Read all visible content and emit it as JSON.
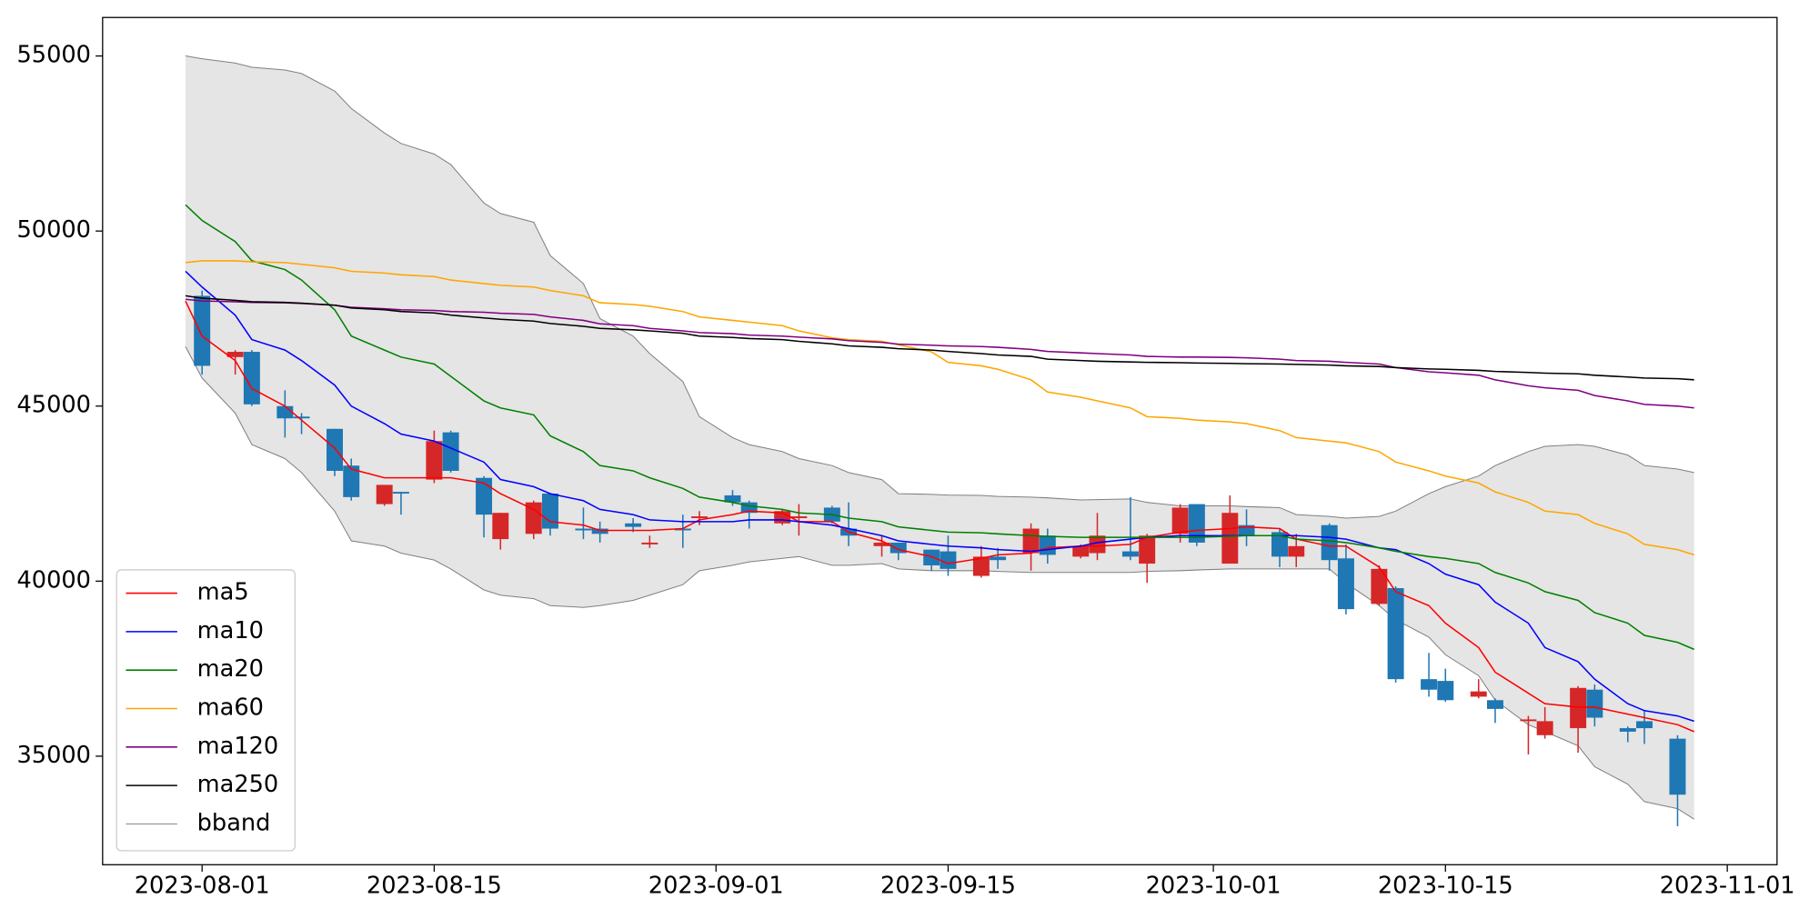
{
  "chart_data": {
    "type": "candlestick",
    "x": [
      "2023-07-31",
      "2023-08-01",
      "2023-08-03",
      "2023-08-04",
      "2023-08-06",
      "2023-08-07",
      "2023-08-09",
      "2023-08-10",
      "2023-08-12",
      "2023-08-13",
      "2023-08-15",
      "2023-08-16",
      "2023-08-18",
      "2023-08-19",
      "2023-08-21",
      "2023-08-22",
      "2023-08-24",
      "2023-08-25",
      "2023-08-27",
      "2023-08-28",
      "2023-08-30",
      "2023-08-31",
      "2023-09-02",
      "2023-09-03",
      "2023-09-05",
      "2023-09-06",
      "2023-09-08",
      "2023-09-09",
      "2023-09-11",
      "2023-09-12",
      "2023-09-14",
      "2023-09-15",
      "2023-09-17",
      "2023-09-18",
      "2023-09-20",
      "2023-09-21",
      "2023-09-23",
      "2023-09-24",
      "2023-09-26",
      "2023-09-27",
      "2023-09-29",
      "2023-09-30",
      "2023-10-02",
      "2023-10-03",
      "2023-10-05",
      "2023-10-06",
      "2023-10-08",
      "2023-10-09",
      "2023-10-11",
      "2023-10-12",
      "2023-10-14",
      "2023-10-15",
      "2023-10-17",
      "2023-10-18",
      "2023-10-20",
      "2023-10-21",
      "2023-10-23",
      "2023-10-24",
      "2023-10-26",
      "2023-10-27",
      "2023-10-29",
      "2023-10-30"
    ],
    "open": [
      null,
      48150,
      46400,
      46550,
      45000,
      44700,
      44350,
      43300,
      42200,
      42550,
      42900,
      44250,
      42950,
      41200,
      41350,
      42500,
      41500,
      41500,
      41650,
      41050,
      41500,
      41800,
      42450,
      42250,
      41650,
      41800,
      42100,
      41500,
      41000,
      41100,
      40900,
      40850,
      40150,
      40700,
      40800,
      41300,
      40700,
      40800,
      40850,
      40500,
      41350,
      42200,
      40500,
      41600,
      41400,
      40700,
      41600,
      40650,
      39350,
      39800,
      37200,
      37150,
      36700,
      36600,
      36000,
      35600,
      35800,
      36900,
      35800,
      36000,
      35500,
      null
    ],
    "high": [
      null,
      48300,
      46600,
      46600,
      45450,
      44800,
      44350,
      43500,
      42750,
      42550,
      44300,
      44300,
      43000,
      41950,
      42300,
      42500,
      42100,
      41700,
      41800,
      41300,
      41900,
      42000,
      42600,
      42300,
      42050,
      42200,
      42150,
      42250,
      41300,
      41100,
      40900,
      41300,
      41000,
      40950,
      41650,
      41500,
      41050,
      41950,
      42400,
      41350,
      42200,
      42200,
      42450,
      42050,
      41500,
      41350,
      41650,
      41050,
      40450,
      39850,
      37950,
      37500,
      37200,
      36650,
      36150,
      36400,
      37000,
      37050,
      35850,
      36300,
      35600,
      null
    ],
    "low": [
      null,
      45900,
      45900,
      45000,
      44100,
      44200,
      43000,
      42300,
      42150,
      41900,
      42800,
      43100,
      41250,
      40900,
      41200,
      41300,
      41200,
      41100,
      41400,
      40950,
      40950,
      41600,
      42150,
      41500,
      41600,
      41300,
      41650,
      41000,
      40700,
      40600,
      40300,
      40150,
      40100,
      40350,
      40300,
      40500,
      40650,
      40600,
      40600,
      39950,
      41100,
      41000,
      40500,
      41000,
      40400,
      40400,
      40300,
      39050,
      39300,
      37100,
      36700,
      36550,
      36650,
      35950,
      35050,
      35500,
      35100,
      35850,
      35400,
      35350,
      33000,
      null
    ],
    "close": [
      null,
      46150,
      46550,
      45050,
      44650,
      44650,
      43150,
      42400,
      42750,
      42500,
      44000,
      43150,
      41900,
      41950,
      42250,
      41500,
      41450,
      41350,
      41550,
      41100,
      41450,
      41850,
      42250,
      41950,
      42000,
      41850,
      41700,
      41300,
      41100,
      40800,
      40450,
      40350,
      40700,
      40600,
      41500,
      40750,
      41000,
      41300,
      40700,
      41300,
      42100,
      41100,
      41950,
      41300,
      40700,
      41000,
      40600,
      39200,
      40350,
      37200,
      36900,
      36600,
      36850,
      36350,
      36050,
      36000,
      36950,
      36100,
      35700,
      35800,
      33900,
      null
    ],
    "up_color": "#d62728",
    "down_color": "#1f77b4",
    "series": [
      {
        "name": "ma5",
        "color": "red",
        "values": [
          48000,
          47000,
          46300,
          45500,
          45000,
          44600,
          43800,
          43200,
          42950,
          42950,
          42950,
          42950,
          42800,
          42500,
          42050,
          41700,
          41600,
          41450,
          41450,
          41450,
          41500,
          41750,
          41900,
          42000,
          41950,
          41700,
          41700,
          41400,
          41150,
          40900,
          40700,
          40500,
          40650,
          40750,
          40800,
          40950,
          41000,
          41000,
          41050,
          41250,
          41400,
          41450,
          41500,
          41550,
          41500,
          41200,
          41000,
          41000,
          40400,
          39700,
          39300,
          38800,
          38100,
          37400,
          36800,
          36500,
          36400,
          36400,
          36200,
          36100,
          35900,
          35700
        ]
      },
      {
        "name": "ma10",
        "color": "blue",
        "values": [
          48850,
          48400,
          47600,
          46900,
          46600,
          46300,
          45600,
          45000,
          44500,
          44200,
          44000,
          43800,
          43400,
          42900,
          42700,
          42500,
          42300,
          42050,
          41900,
          41750,
          41700,
          41700,
          41700,
          41750,
          41750,
          41700,
          41600,
          41500,
          41300,
          41150,
          41050,
          41000,
          40950,
          40900,
          40850,
          40900,
          41000,
          41100,
          41200,
          41250,
          41300,
          41300,
          41300,
          41300,
          41300,
          41300,
          41250,
          41200,
          40950,
          40900,
          40500,
          40200,
          39900,
          39400,
          38800,
          38100,
          37700,
          37200,
          36500,
          36300,
          36150,
          36000
        ]
      },
      {
        "name": "ma20",
        "color": "green",
        "values": [
          50750,
          50300,
          49700,
          49150,
          48900,
          48600,
          47750,
          47000,
          46600,
          46400,
          46200,
          45850,
          45150,
          44950,
          44750,
          44150,
          43700,
          43300,
          43150,
          42950,
          42650,
          42400,
          42250,
          42150,
          42050,
          41950,
          41900,
          41800,
          41700,
          41550,
          41450,
          41400,
          41380,
          41350,
          41300,
          41280,
          41250,
          41250,
          41250,
          41250,
          41250,
          41250,
          41280,
          41300,
          41300,
          41200,
          41150,
          41100,
          40950,
          40850,
          40700,
          40650,
          40500,
          40250,
          39950,
          39700,
          39450,
          39100,
          38800,
          38450,
          38250,
          38050
        ]
      },
      {
        "name": "ma60",
        "color": "orange",
        "values": [
          49100,
          49150,
          49150,
          49120,
          49100,
          49050,
          48950,
          48850,
          48800,
          48750,
          48700,
          48600,
          48500,
          48450,
          48400,
          48300,
          48150,
          47950,
          47900,
          47850,
          47700,
          47550,
          47450,
          47400,
          47300,
          47150,
          46950,
          46900,
          46850,
          46750,
          46550,
          46250,
          46150,
          46050,
          45750,
          45400,
          45250,
          45150,
          44950,
          44700,
          44650,
          44600,
          44550,
          44500,
          44300,
          44100,
          44000,
          43950,
          43700,
          43400,
          43150,
          43000,
          42800,
          42550,
          42250,
          42000,
          41900,
          41650,
          41350,
          41050,
          40900,
          40750
        ]
      },
      {
        "name": "ma120",
        "color": "purple",
        "values": [
          48050,
          48000,
          47980,
          47960,
          47950,
          47930,
          47880,
          47820,
          47780,
          47750,
          47730,
          47700,
          47680,
          47650,
          47620,
          47550,
          47450,
          47350,
          47300,
          47220,
          47150,
          47100,
          47070,
          47030,
          47000,
          46970,
          46920,
          46870,
          46820,
          46770,
          46740,
          46720,
          46700,
          46680,
          46620,
          46560,
          46520,
          46500,
          46460,
          46420,
          46400,
          46400,
          46390,
          46380,
          46340,
          46300,
          46280,
          46250,
          46200,
          46100,
          45980,
          45950,
          45880,
          45750,
          45580,
          45520,
          45450,
          45300,
          45150,
          45050,
          45000,
          44950
        ]
      },
      {
        "name": "ma250",
        "color": "black",
        "values": [
          48150,
          48080,
          48020,
          47980,
          47960,
          47940,
          47880,
          47800,
          47750,
          47700,
          47660,
          47600,
          47520,
          47480,
          47430,
          47360,
          47280,
          47220,
          47180,
          47150,
          47080,
          47000,
          46960,
          46930,
          46900,
          46850,
          46780,
          46720,
          46680,
          46640,
          46600,
          46560,
          46500,
          46460,
          46420,
          46340,
          46300,
          46280,
          46260,
          46250,
          46240,
          46230,
          46220,
          46210,
          46200,
          46190,
          46170,
          46150,
          46130,
          46100,
          46060,
          46050,
          46020,
          45990,
          45960,
          45940,
          45920,
          45880,
          45830,
          45800,
          45780,
          45750
        ]
      },
      {
        "name": "bband",
        "color": "gray",
        "fill": "#e5e5e5",
        "upper": [
          55000,
          54920,
          54800,
          54680,
          54600,
          54500,
          54000,
          53500,
          52800,
          52500,
          52200,
          51900,
          50800,
          50500,
          50250,
          49300,
          48500,
          47500,
          47000,
          46500,
          45700,
          44700,
          44100,
          43900,
          43700,
          43500,
          43300,
          43100,
          42900,
          42500,
          42480,
          42460,
          42450,
          42420,
          42400,
          42380,
          42320,
          42330,
          42350,
          42250,
          42150,
          42150,
          42150,
          42130,
          42100,
          41900,
          41850,
          41800,
          41850,
          42000,
          42500,
          42700,
          43000,
          43300,
          43700,
          43850,
          43900,
          43850,
          43600,
          43300,
          43200,
          43100
        ],
        "lower": [
          46700,
          45800,
          44800,
          43900,
          43500,
          43100,
          42000,
          41150,
          41000,
          40800,
          40600,
          40350,
          39750,
          39600,
          39500,
          39300,
          39250,
          39300,
          39450,
          39600,
          39900,
          40300,
          40450,
          40550,
          40650,
          40700,
          40450,
          40450,
          40500,
          40350,
          40300,
          40300,
          40300,
          40280,
          40250,
          40250,
          40250,
          40250,
          40250,
          40280,
          40300,
          40320,
          40350,
          40350,
          40350,
          40350,
          40350,
          39950,
          39300,
          38900,
          38400,
          37900,
          37300,
          36600,
          35900,
          35700,
          35300,
          34700,
          34200,
          33700,
          33500,
          33200
        ]
      }
    ],
    "xlim": [
      "2023-07-26",
      "2023-11-04"
    ],
    "xticks": [
      "2023-08-01",
      "2023-08-15",
      "2023-09-01",
      "2023-09-15",
      "2023-10-01",
      "2023-10-15",
      "2023-11-01"
    ],
    "ylim": [
      31900,
      56100
    ],
    "yticks": [
      35000,
      40000,
      45000,
      50000,
      55000
    ],
    "legend": "lower left"
  }
}
